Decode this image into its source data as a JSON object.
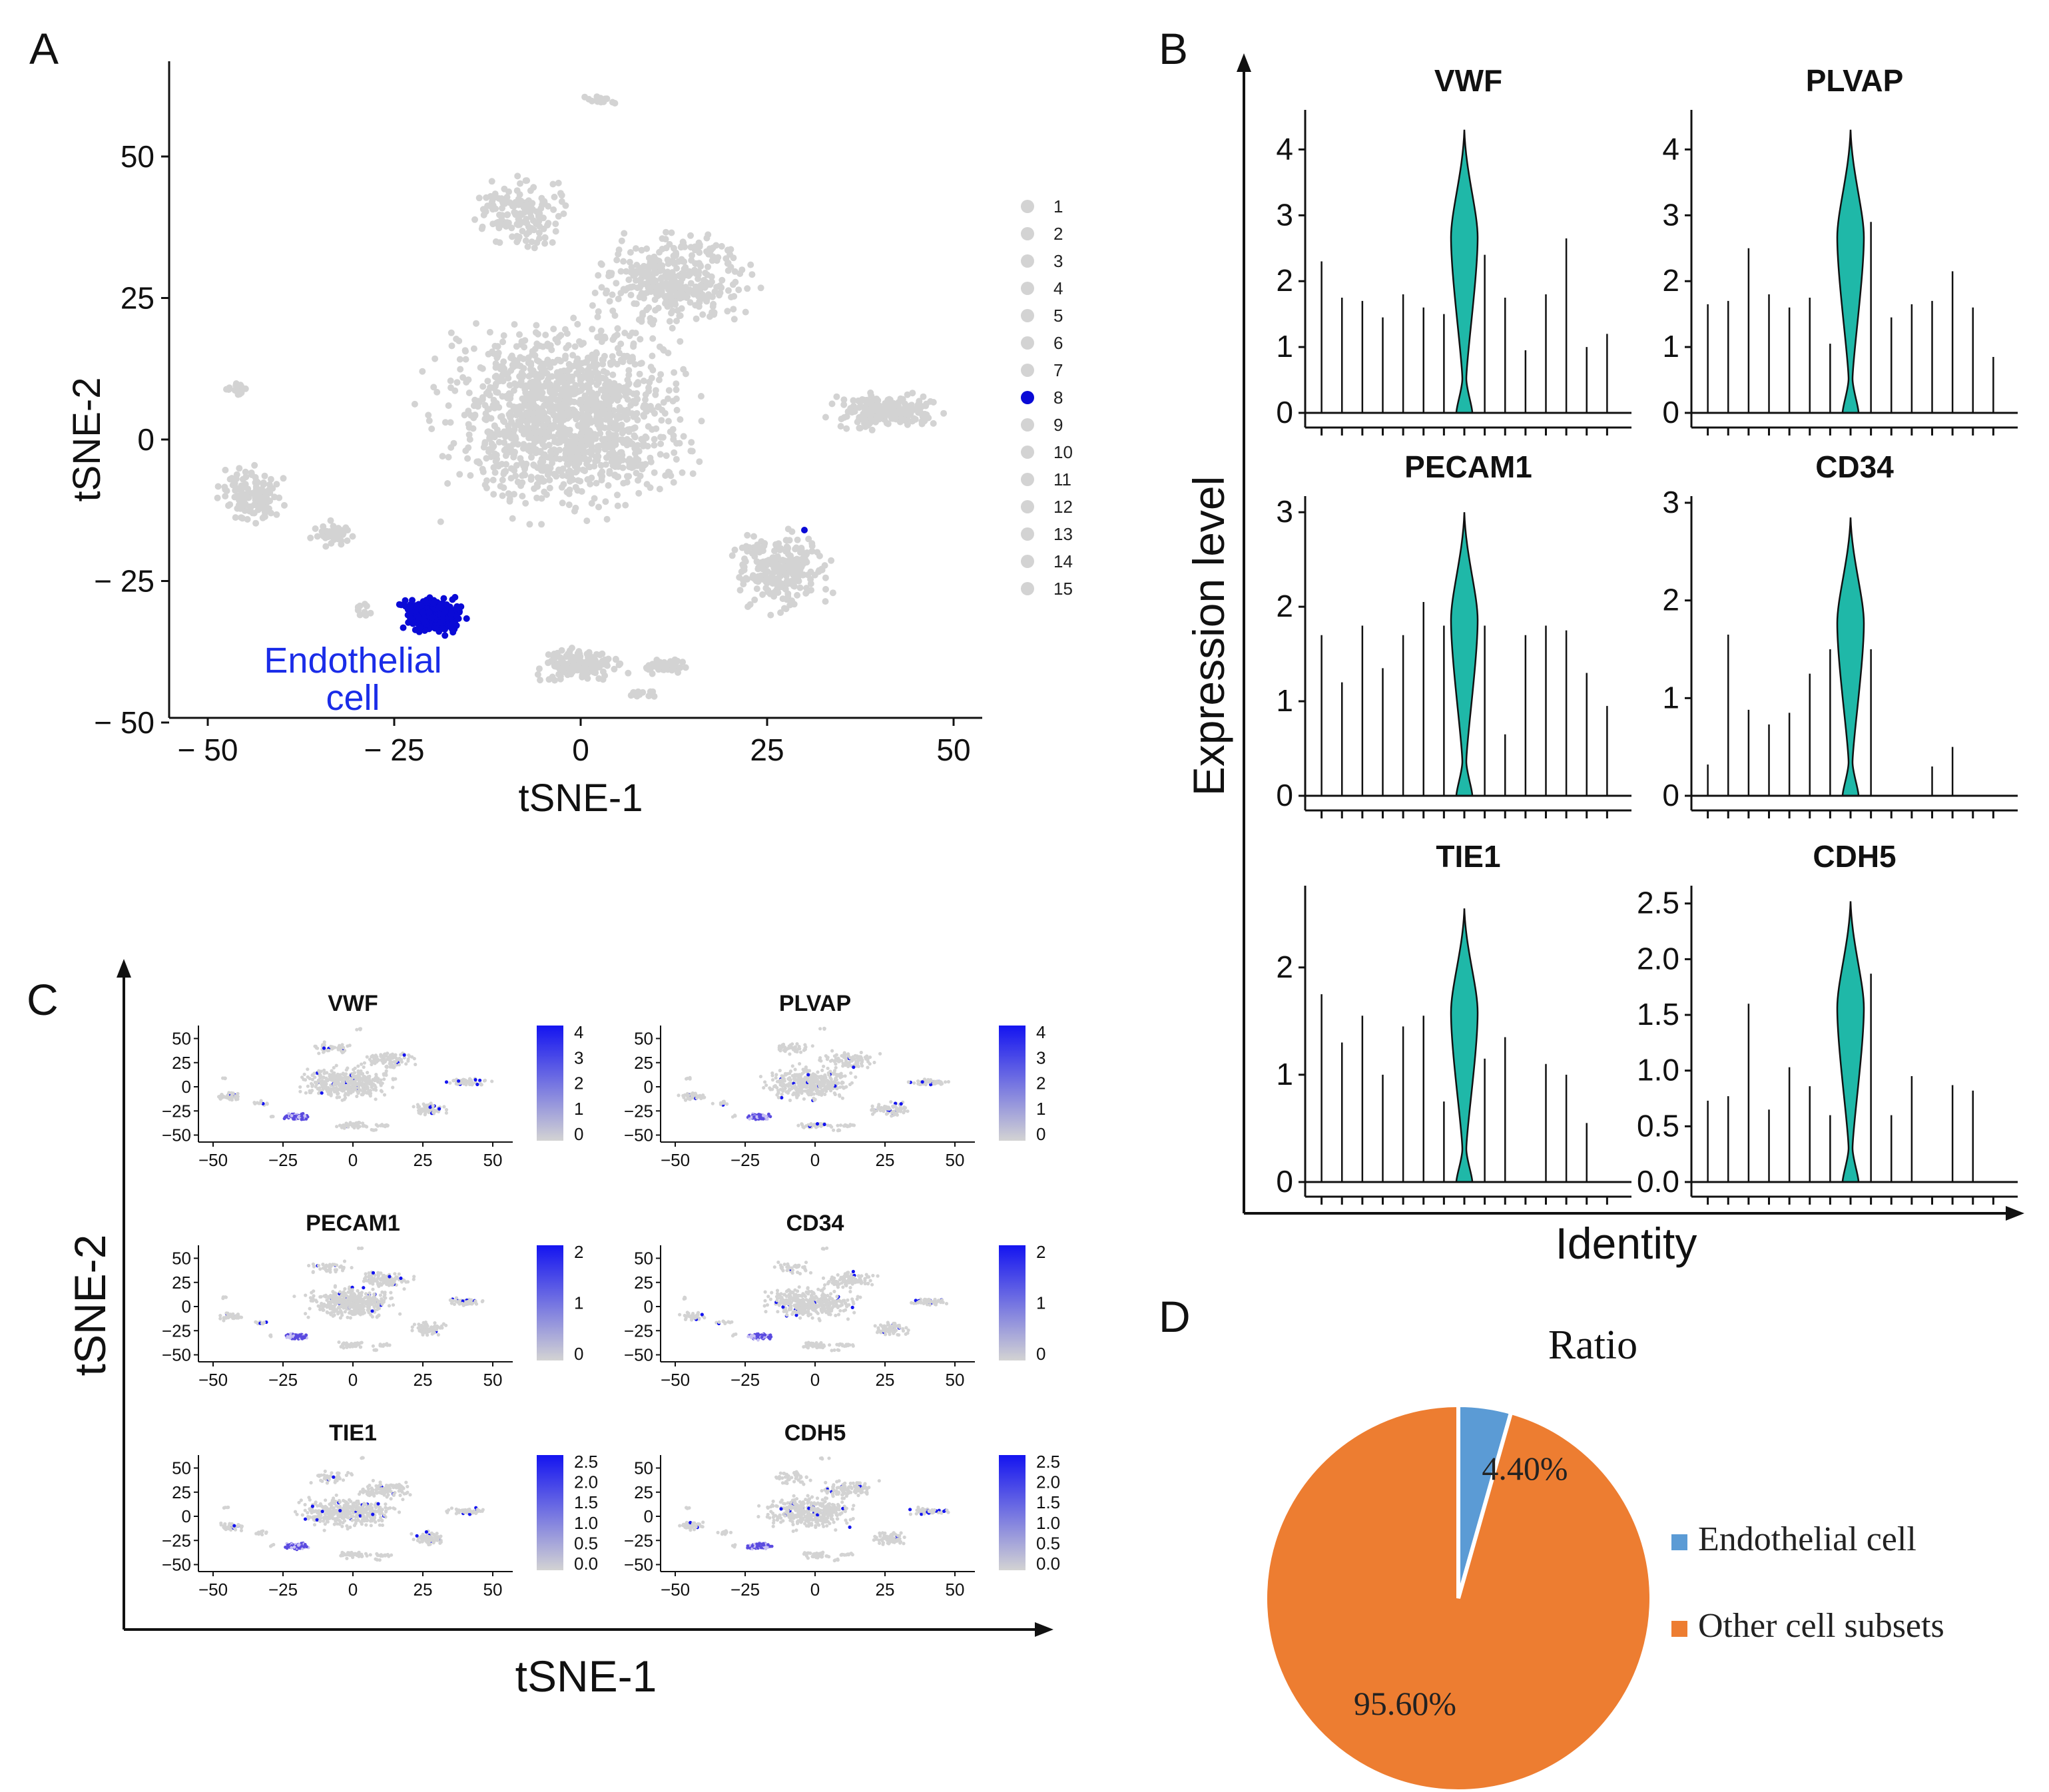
{
  "chart_data": [
    {
      "panel": "A",
      "type": "scatter",
      "xlabel": "tSNE-1",
      "ylabel": "tSNE-2",
      "xlim": [
        -55,
        55
      ],
      "ylim": [
        -52,
        66
      ],
      "xticks": [
        -50,
        -25,
        0,
        25,
        50
      ],
      "xtick_labels": [
        "− 50",
        "− 25",
        "0",
        "25",
        "50"
      ],
      "yticks": [
        50,
        25,
        0,
        -25,
        -50
      ],
      "ytick_labels": [
        "50",
        "25",
        "0",
        "− 25",
        "− 50"
      ],
      "legend": {
        "entries": [
          "1",
          "2",
          "3",
          "4",
          "5",
          "6",
          "7",
          "8",
          "9",
          "10",
          "11",
          "12",
          "13",
          "14",
          "15"
        ],
        "highlighted": "8"
      },
      "annotation": [
        "Endothelial",
        "cell"
      ],
      "colors": {
        "background_cells": "#d3d3d3",
        "highlight": "#0a0ad6"
      }
    },
    {
      "panel": "B",
      "type": "violin",
      "xlabel": "Identity",
      "ylabel": "Expression level",
      "n_clusters": 15,
      "highlight_cluster": 8,
      "fill": "#1fb8a8",
      "genes": [
        {
          "gene": "VWF",
          "ylim": [
            0,
            4.5
          ],
          "yticks": [
            0,
            1,
            2,
            3,
            4
          ],
          "ytick_labels": [
            "0",
            "1",
            "2",
            "3",
            "4"
          ],
          "max_values": [
            2.3,
            1.75,
            1.7,
            1.45,
            1.8,
            1.6,
            1.5,
            4.3,
            2.4,
            1.75,
            0.95,
            1.8,
            2.65,
            1.0,
            1.2
          ]
        },
        {
          "gene": "PLVAP",
          "ylim": [
            0,
            4.5
          ],
          "yticks": [
            0,
            1,
            2,
            3,
            4
          ],
          "ytick_labels": [
            "0",
            "1",
            "2",
            "3",
            "4"
          ],
          "max_values": [
            1.65,
            1.7,
            2.5,
            1.8,
            1.6,
            1.75,
            1.05,
            4.3,
            2.9,
            1.45,
            1.65,
            1.7,
            2.15,
            1.6,
            0.85
          ]
        },
        {
          "gene": "PECAM1",
          "ylim": [
            0,
            3.1
          ],
          "yticks": [
            0,
            1,
            2,
            3
          ],
          "ytick_labels": [
            "0",
            "1",
            "2",
            "3"
          ],
          "max_values": [
            1.7,
            1.2,
            1.8,
            1.35,
            1.7,
            2.05,
            1.8,
            3.0,
            1.8,
            0.65,
            1.7,
            1.8,
            1.75,
            1.3,
            0.95
          ]
        },
        {
          "gene": "CD34",
          "ylim": [
            0,
            3.0
          ],
          "yticks": [
            0,
            1,
            2,
            3
          ],
          "ytick_labels": [
            "0",
            "1",
            "2",
            "3"
          ],
          "max_values": [
            0.32,
            1.65,
            0.88,
            0.73,
            0.85,
            1.25,
            1.5,
            2.85,
            1.5,
            0,
            0,
            0.3,
            0.5,
            0,
            0
          ]
        },
        {
          "gene": "TIE1",
          "ylim": [
            0,
            2.7
          ],
          "yticks": [
            0,
            1,
            2
          ],
          "ytick_labels": [
            "0",
            "1",
            "2"
          ],
          "max_values": [
            1.75,
            1.3,
            1.55,
            1.0,
            1.45,
            1.55,
            0.75,
            2.55,
            1.15,
            1.35,
            0,
            1.1,
            1.0,
            0.55,
            0
          ]
        },
        {
          "gene": "CDH5",
          "ylim": [
            0,
            2.6
          ],
          "yticks": [
            0,
            0.5,
            1.0,
            1.5,
            2.0,
            2.5
          ],
          "ytick_labels": [
            "0.0",
            "0.5",
            "1.0",
            "1.5",
            "2.0",
            "2.5"
          ],
          "max_values": [
            0.73,
            0.77,
            1.6,
            0.65,
            1.03,
            0.86,
            0.6,
            2.52,
            1.87,
            0.6,
            0.95,
            0,
            0.87,
            0.82,
            0
          ]
        }
      ]
    },
    {
      "panel": "C",
      "type": "scatter",
      "xlabel": "tSNE-1",
      "ylabel": "tSNE-2",
      "xticks": [
        -50,
        -25,
        0,
        25,
        50
      ],
      "xtick_labels": [
        "−50",
        "−25",
        "0",
        "25",
        "50"
      ],
      "yticks": [
        50,
        25,
        0,
        -25,
        -50
      ],
      "ytick_labels": [
        "50",
        "25",
        "0",
        "−25",
        "−50"
      ],
      "colors": {
        "low": "#d3d3d3",
        "high": "#1414f0"
      },
      "features": [
        {
          "gene": "VWF",
          "colorbar_ticks": [
            "4",
            "3",
            "2",
            "1",
            "0"
          ]
        },
        {
          "gene": "PLVAP",
          "colorbar_ticks": [
            "4",
            "3",
            "2",
            "1",
            "0"
          ]
        },
        {
          "gene": "PECAM1",
          "colorbar_ticks": [
            "2",
            "1",
            "0"
          ]
        },
        {
          "gene": "CD34",
          "colorbar_ticks": [
            "2",
            "1",
            "0"
          ]
        },
        {
          "gene": "TIE1",
          "colorbar_ticks": [
            "2.5",
            "2.0",
            "1.5",
            "1.0",
            "0.5",
            "0.0"
          ]
        },
        {
          "gene": "CDH5",
          "colorbar_ticks": [
            "2.5",
            "2.0",
            "1.5",
            "1.0",
            "0.5",
            "0.0"
          ]
        }
      ]
    },
    {
      "panel": "D",
      "type": "pie",
      "title": "Ratio",
      "labels": [
        "Endothelial cell",
        "Other cell subsets"
      ],
      "values": [
        4.4,
        95.6
      ],
      "value_labels": [
        "4.40%",
        "95.60%"
      ],
      "colors": [
        "#5b9bd5",
        "#ed7d31"
      ]
    }
  ],
  "panel_labels": {
    "a": "A",
    "b": "B",
    "c": "C",
    "d": "D"
  }
}
